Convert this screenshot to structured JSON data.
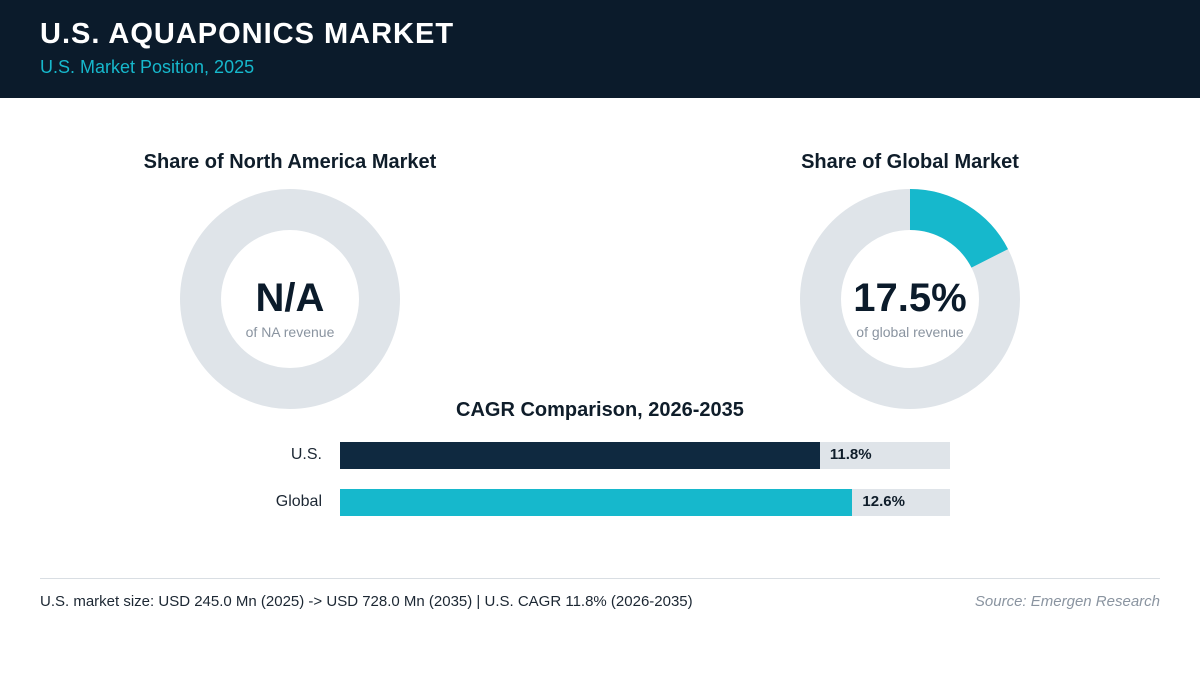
{
  "header": {
    "title": "U.S. AQUAPONICS MARKET",
    "subtitle": "U.S. Market Position, 2025"
  },
  "colors": {
    "header_bg": "#0b1b2b",
    "accent_teal": "#16b8cc",
    "navy": "#0f2940",
    "track_gray": "#dfe4e9"
  },
  "donuts": [
    {
      "title": "Share of North America Market",
      "value_text": "N/A",
      "caption": "of NA revenue",
      "share": null
    },
    {
      "title": "Share of Global Market",
      "value_text": "17.5%",
      "caption": "of global revenue",
      "share": 17.5
    }
  ],
  "chart_data": [
    {
      "type": "pie",
      "title": "Share of North America Market",
      "categories": [
        "U.S."
      ],
      "values": [
        null
      ],
      "value_label": "N/A",
      "caption": "of NA revenue"
    },
    {
      "type": "pie",
      "title": "Share of Global Market",
      "categories": [
        "U.S."
      ],
      "values": [
        17.5
      ],
      "value_label": "17.5%",
      "caption": "of global revenue"
    },
    {
      "type": "bar",
      "orientation": "horizontal",
      "title": "CAGR Comparison, 2026-2035",
      "categories": [
        "U.S.",
        "Global"
      ],
      "values": [
        11.8,
        12.6
      ],
      "value_labels": [
        "11.8%",
        "12.6%"
      ],
      "colors": [
        "#0f2940",
        "#16b8cc"
      ],
      "xlim": [
        0,
        15
      ]
    }
  ],
  "footer": {
    "note": "U.S. market size: USD 245.0 Mn (2025) -> USD 728.0 Mn (2035)  |  U.S. CAGR 11.8% (2026-2035)",
    "source": "Source: Emergen Research"
  }
}
